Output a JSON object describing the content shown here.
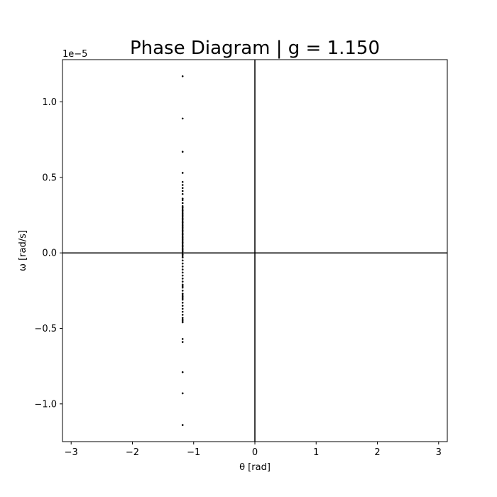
{
  "chart_data": {
    "type": "scatter",
    "title": "Phase Diagram | g = 1.150",
    "xlabel": "θ [rad]",
    "ylabel": "ω [rad/s]",
    "y_offset_label": "1e−5",
    "xlim": [
      -3.1416,
      3.1416
    ],
    "ylim": [
      -1.25,
      1.28
    ],
    "x_ticks": [
      -3,
      -2,
      -1,
      0,
      1,
      2,
      3
    ],
    "x_tick_labels": [
      "−3",
      "−2",
      "−1",
      "0",
      "1",
      "2",
      "3"
    ],
    "y_ticks": [
      -1.0,
      -0.5,
      0.0,
      0.5,
      1.0
    ],
    "y_tick_labels": [
      "−1.0",
      "−0.5",
      "0.0",
      "0.5",
      "1.0"
    ],
    "grid": false,
    "reference_lines": {
      "x": 0,
      "y": 0
    },
    "marker_color": "#000000",
    "series": [
      {
        "x": [
          -1.18,
          -1.18,
          -1.18,
          -1.18,
          -1.18,
          -1.18,
          -1.18,
          -1.18,
          -1.18,
          -1.18,
          -1.18,
          -1.18,
          -1.18,
          -1.18,
          -1.18,
          -1.18,
          -1.18,
          -1.18,
          -1.18,
          -1.18,
          -1.18,
          -1.18,
          -1.18,
          -1.18,
          -1.18,
          -1.18,
          -1.18,
          -1.18,
          -1.18,
          -1.18,
          -1.18,
          -1.18,
          -1.18,
          -1.18,
          -1.18,
          -1.18,
          -1.18,
          -1.18,
          -1.18,
          -1.18,
          -1.18,
          -1.18,
          -1.18,
          -1.18,
          -1.18,
          -1.18,
          -1.18,
          -1.18,
          -1.18,
          -1.18,
          -1.18,
          -1.18,
          -1.18,
          -1.18,
          -1.18,
          -1.18,
          -1.18,
          -1.18,
          -1.18,
          -1.18,
          -1.18,
          -1.18,
          -1.18,
          -1.18,
          -1.18,
          -1.18,
          -1.18,
          -1.18,
          -1.18,
          -1.18,
          -1.18,
          -1.18,
          -1.18,
          -1.18,
          -1.18,
          -1.18,
          -1.18,
          -1.18
        ],
        "y": [
          1.17,
          0.89,
          0.67,
          0.53,
          0.47,
          0.45,
          0.43,
          0.41,
          0.35,
          0.33,
          0.31,
          0.3,
          0.29,
          0.28,
          0.27,
          0.26,
          0.25,
          0.24,
          0.23,
          0.22,
          0.21,
          0.2,
          0.19,
          0.18,
          0.17,
          0.16,
          0.15,
          0.14,
          0.13,
          0.12,
          0.11,
          0.1,
          0.09,
          0.08,
          0.07,
          0.06,
          0.05,
          0.04,
          0.03,
          0.02,
          0.01,
          0.0,
          -0.01,
          -0.02,
          -0.03,
          -0.05,
          -0.07,
          -0.09,
          -0.11,
          -0.13,
          -0.15,
          -0.17,
          -0.19,
          -0.21,
          -0.23,
          -0.25,
          -0.27,
          -0.29,
          -0.3,
          -0.31,
          -0.33,
          -0.35,
          -0.37,
          -0.39,
          -0.41,
          -0.43,
          -0.44,
          -0.45,
          -0.46,
          -0.57,
          -0.59,
          -0.79,
          -0.93,
          -1.14,
          -0.22,
          0.36,
          0.39,
          -0.28
        ]
      }
    ]
  }
}
